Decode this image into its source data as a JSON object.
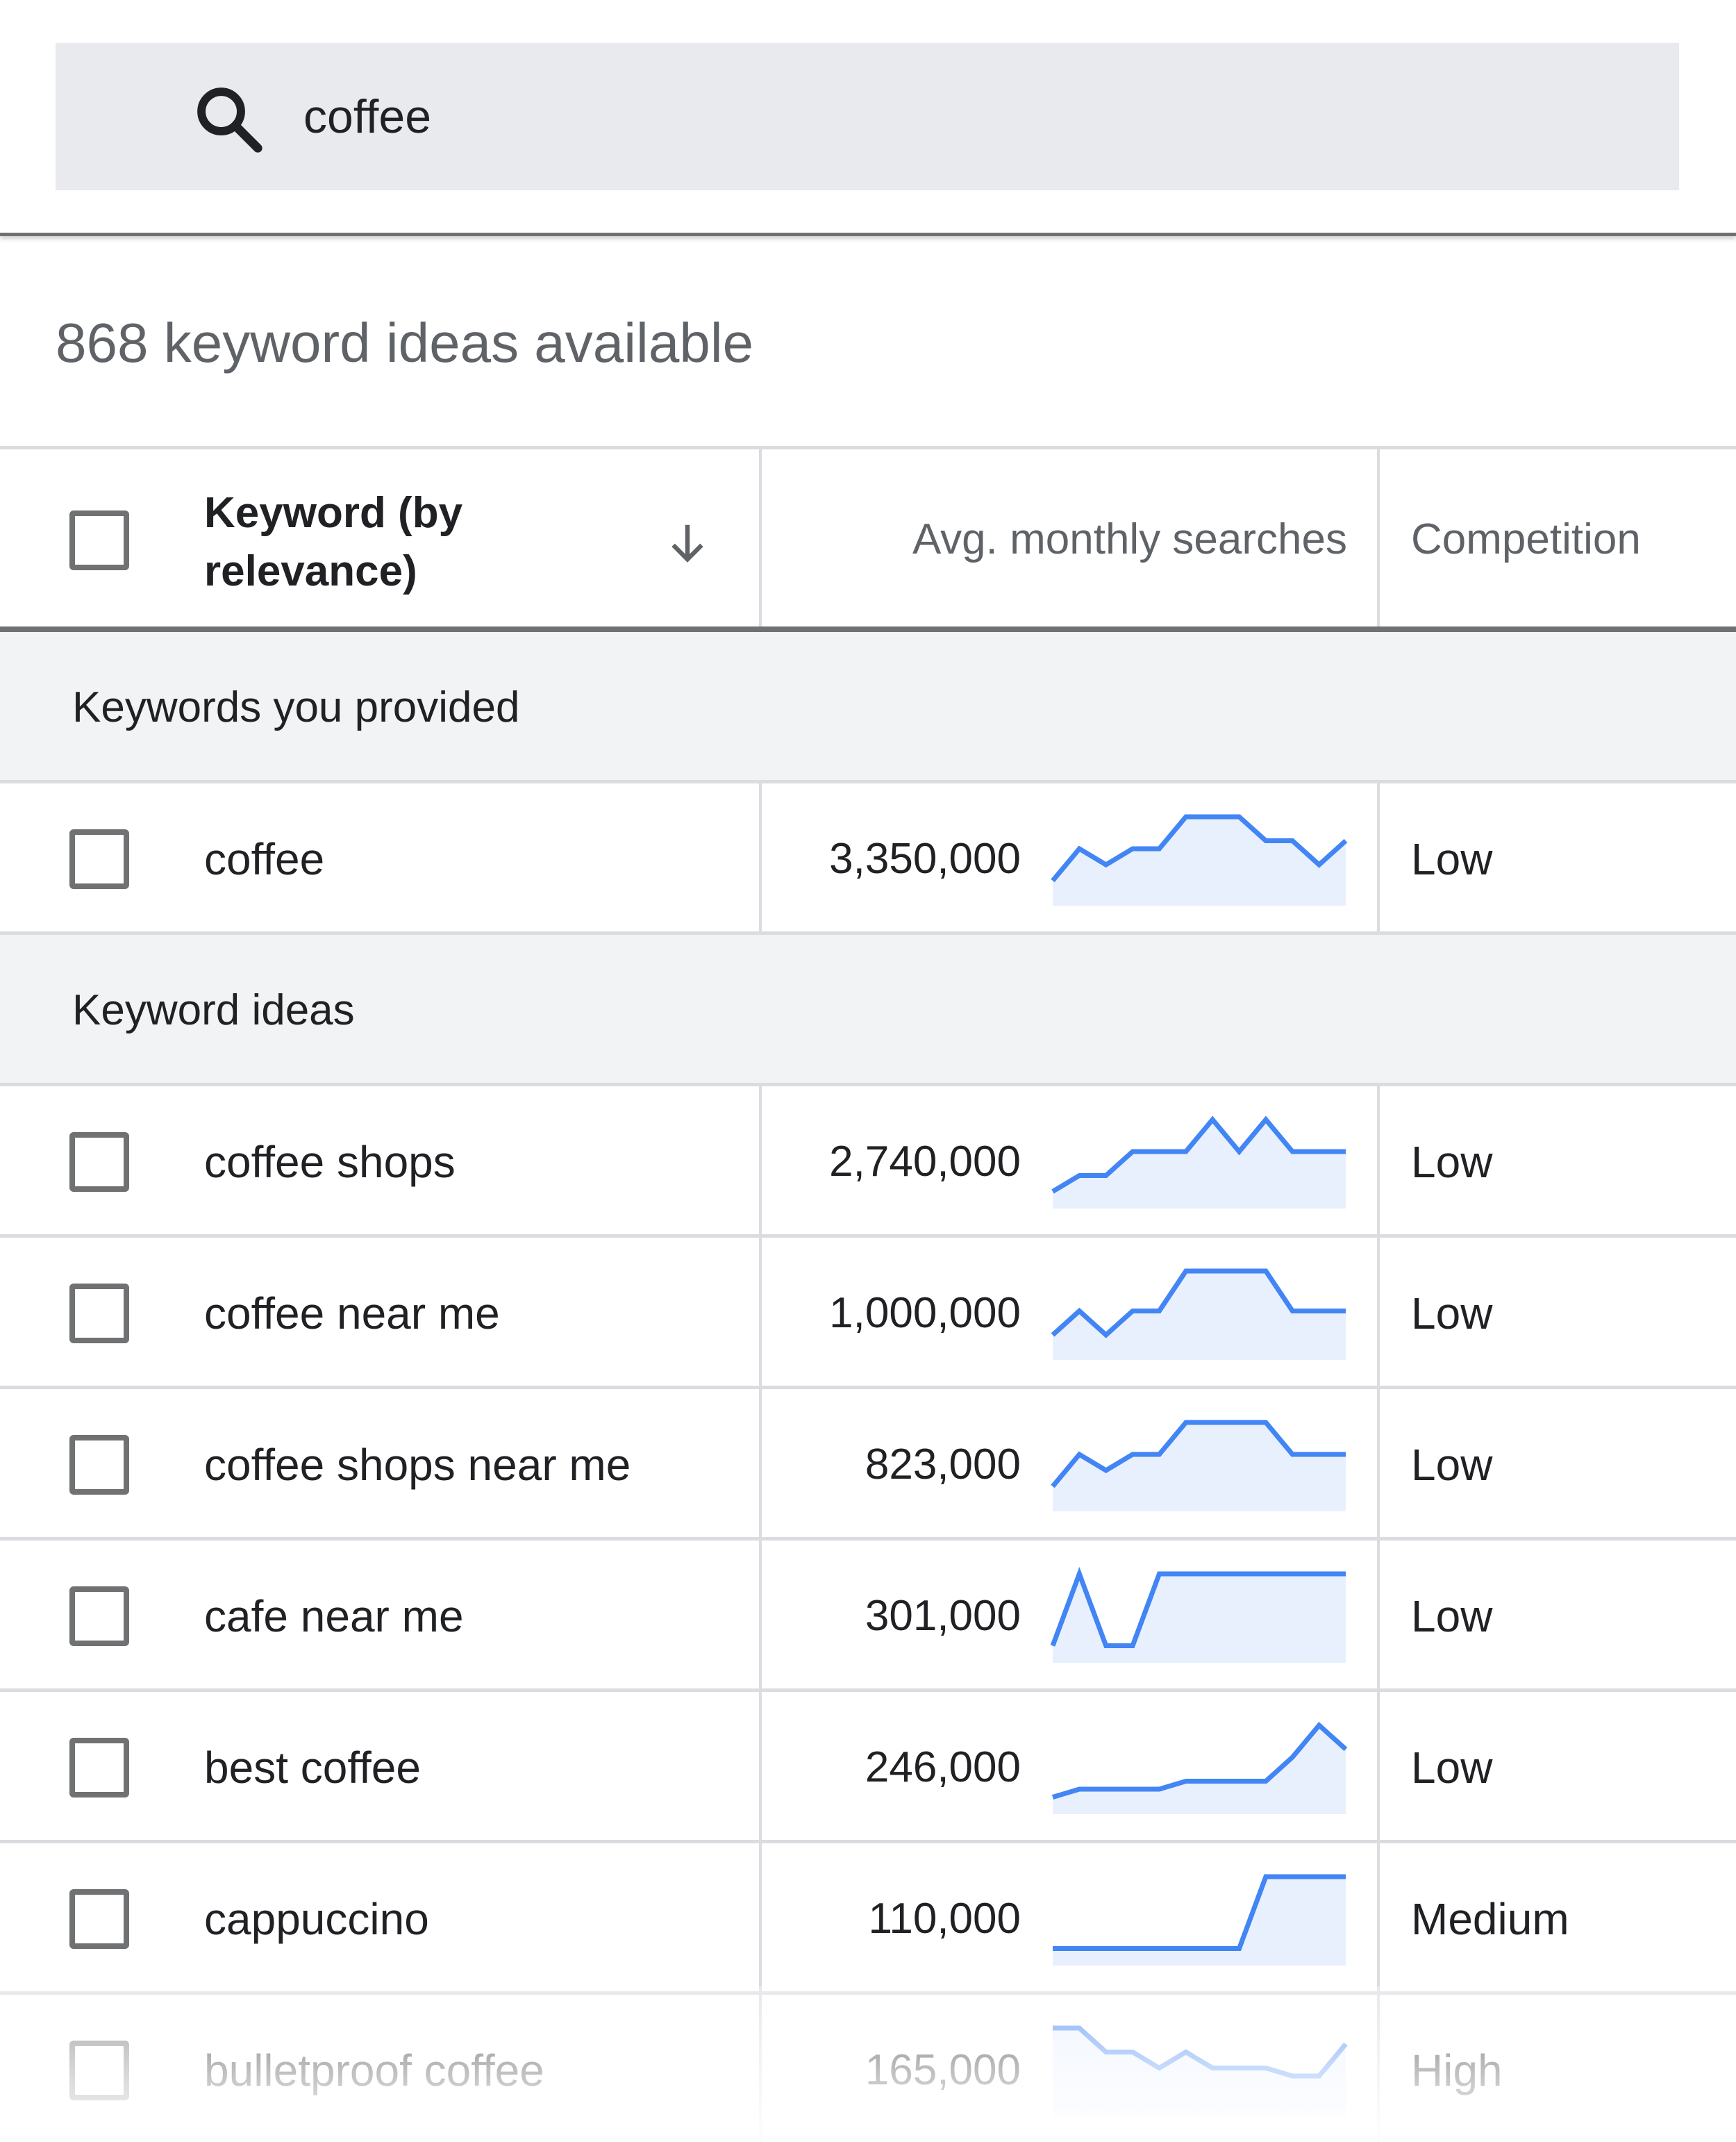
{
  "search": {
    "query": "coffee"
  },
  "summary": {
    "ideas_available": "868 keyword ideas available"
  },
  "table": {
    "headers": {
      "keyword": "Keyword (by relevance)",
      "avg_monthly": "Avg. monthly searches",
      "competition": "Competition"
    },
    "sections": [
      {
        "label": "Keywords you provided",
        "rows": [
          {
            "keyword": "coffee",
            "volume": "3,350,000",
            "competition": "Low",
            "trend": [
              2,
              6,
              4,
              6,
              6,
              10,
              10,
              10,
              7,
              7,
              4,
              7
            ]
          }
        ]
      },
      {
        "label": "Keyword ideas",
        "rows": [
          {
            "keyword": "coffee shops",
            "volume": "2,740,000",
            "competition": "Low",
            "trend": [
              1,
              3,
              3,
              6,
              6,
              6,
              10,
              6,
              10,
              6,
              6,
              6
            ]
          },
          {
            "keyword": "coffee near me",
            "volume": "1,000,000",
            "competition": "Low",
            "trend": [
              2,
              5,
              2,
              5,
              5,
              10,
              10,
              10,
              10,
              5,
              5,
              5
            ]
          },
          {
            "keyword": "coffee shops near me",
            "volume": "823,000",
            "competition": "Low",
            "trend": [
              2,
              6,
              4,
              6,
              6,
              10,
              10,
              10,
              10,
              6,
              6,
              6
            ]
          },
          {
            "keyword": "cafe near me",
            "volume": "301,000",
            "competition": "Low",
            "trend": [
              1,
              10,
              1,
              1,
              10,
              10,
              10,
              10,
              10,
              10,
              10,
              10
            ]
          },
          {
            "keyword": "best coffee",
            "volume": "246,000",
            "competition": "Low",
            "trend": [
              1,
              2,
              2,
              2,
              2,
              3,
              3,
              3,
              3,
              6,
              10,
              7
            ]
          },
          {
            "keyword": "cappuccino",
            "volume": "110,000",
            "competition": "Medium",
            "trend": [
              1,
              1,
              1,
              1,
              1,
              1,
              1,
              1,
              10,
              10,
              10,
              10
            ]
          },
          {
            "keyword": "bulletproof coffee",
            "volume": "165,000",
            "competition": "High",
            "trend": [
              10,
              10,
              7,
              7,
              5,
              7,
              5,
              5,
              5,
              4,
              4,
              8
            ]
          }
        ]
      }
    ]
  },
  "colors": {
    "trend_line": "#4285f4",
    "trend_fill": "#e8f0fe",
    "checkbox": "#6f7173",
    "section_bg": "#f1f3f4"
  }
}
